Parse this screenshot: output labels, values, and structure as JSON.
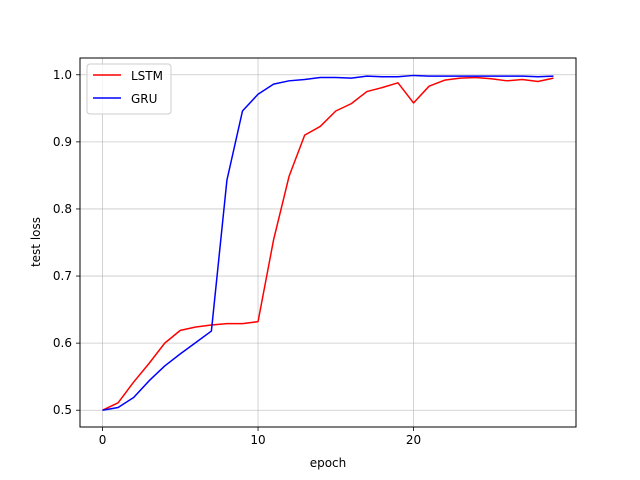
{
  "chart_data": {
    "type": "line",
    "title": "",
    "xlabel": "epoch",
    "ylabel": "test loss",
    "xlim": [
      -1.45,
      30.45
    ],
    "ylim": [
      0.475,
      1.025
    ],
    "xticks": [
      0,
      10,
      20
    ],
    "xtick_labels": [
      "0",
      "10",
      "20"
    ],
    "yticks": [
      0.5,
      0.6,
      0.7,
      0.8,
      0.9,
      1.0
    ],
    "ytick_labels": [
      "0.5",
      "0.6",
      "0.7",
      "0.8",
      "0.9",
      "1.0"
    ],
    "grid": true,
    "legend_position": "top-left",
    "x": [
      0,
      1,
      2,
      3,
      4,
      5,
      6,
      7,
      8,
      9,
      10,
      11,
      12,
      13,
      14,
      15,
      16,
      17,
      18,
      19,
      20,
      21,
      22,
      23,
      24,
      25,
      26,
      27,
      28,
      29
    ],
    "series": [
      {
        "name": "LSTM",
        "color": "#ff0000",
        "values": [
          0.5,
          0.511,
          0.542,
          0.57,
          0.6,
          0.619,
          0.624,
          0.627,
          0.629,
          0.629,
          0.632,
          0.754,
          0.849,
          0.91,
          0.923,
          0.946,
          0.957,
          0.975,
          0.981,
          0.988,
          0.958,
          0.983,
          0.992,
          0.995,
          0.996,
          0.994,
          0.991,
          0.993,
          0.99,
          0.995
        ]
      },
      {
        "name": "GRU",
        "color": "#0000ff",
        "values": [
          0.5,
          0.504,
          0.519,
          0.544,
          0.566,
          0.584,
          0.601,
          0.618,
          0.843,
          0.946,
          0.971,
          0.986,
          0.991,
          0.993,
          0.996,
          0.996,
          0.995,
          0.998,
          0.997,
          0.997,
          0.999,
          0.998,
          0.998,
          0.998,
          0.998,
          0.998,
          0.998,
          0.998,
          0.997,
          0.998
        ]
      }
    ]
  }
}
